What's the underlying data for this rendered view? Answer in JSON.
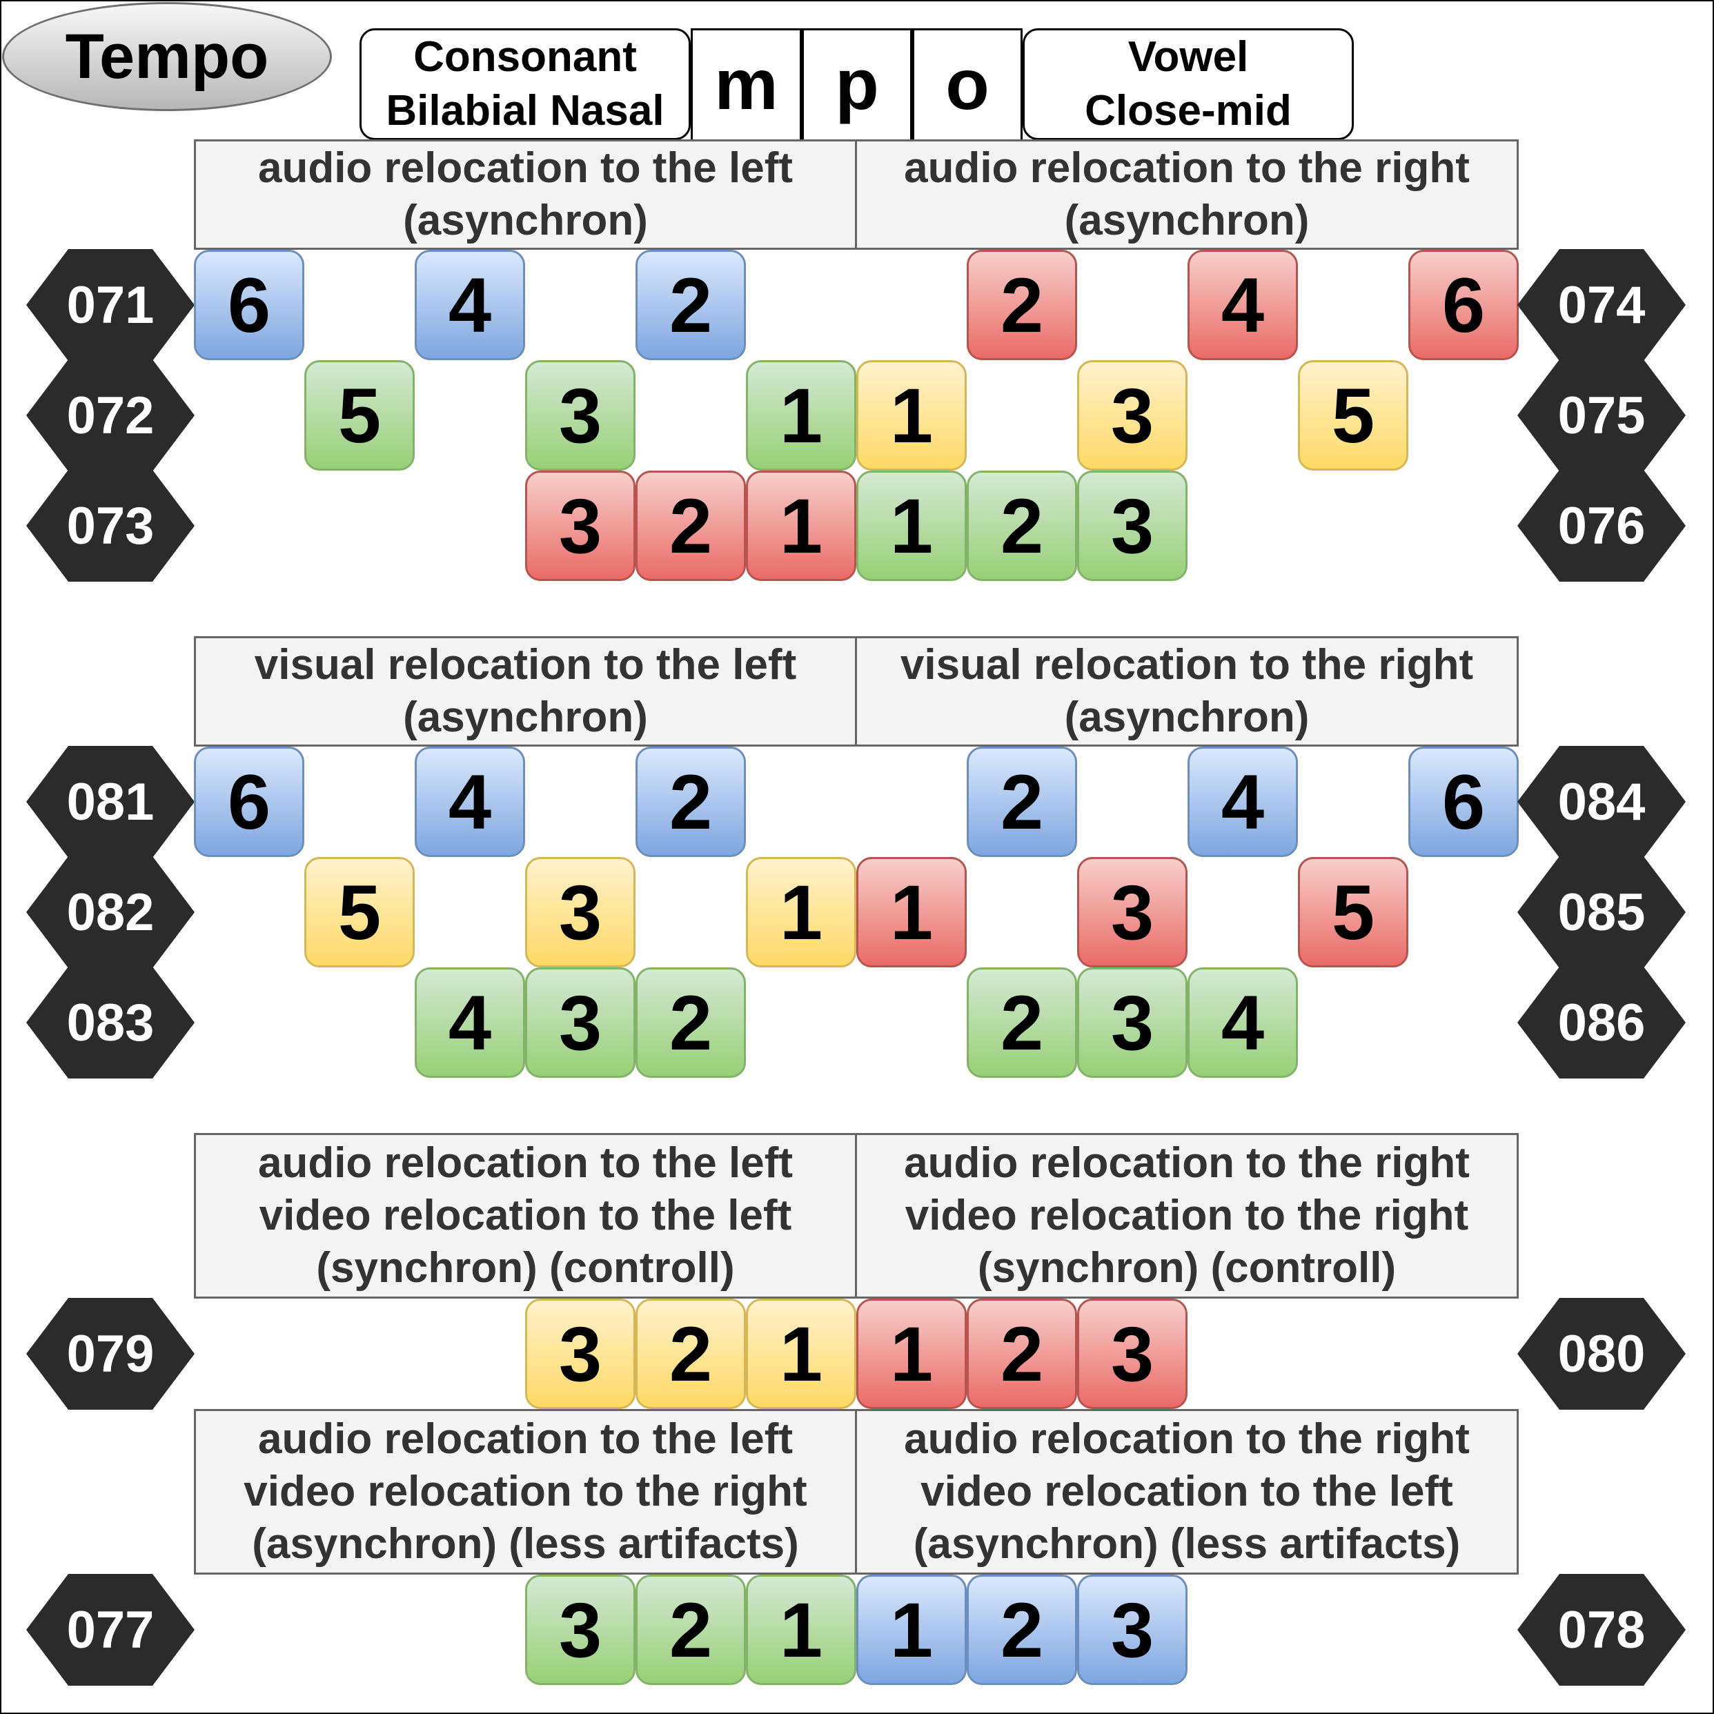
{
  "title": "Tempo",
  "consonant_label": "Consonant\nBilabial Nasal",
  "vowel_label": "Vowel\nClose-mid",
  "letters": [
    "m",
    "p",
    "o"
  ],
  "sections": [
    {
      "left": "audio relocation to the left\n(asynchron)",
      "right": "audio relocation to the right\n(asynchron)"
    },
    {
      "left": "visual relocation to the left\n(asynchron)",
      "right": "visual relocation to the right\n(asynchron)"
    },
    {
      "left": "audio relocation to the left\nvideo relocation to the left\n(synchron) (controll)",
      "right": "audio relocation to the right\nvideo relocation to the right\n(synchron)  (controll)"
    },
    {
      "left": "audio relocation to the left\nvideo relocation to the right\n(asynchron) (less artifacts)",
      "right": "audio relocation to the right\nvideo relocation to the left\n(asynchron) (less artifacts)"
    }
  ],
  "rows": [
    {
      "left_id": "071",
      "right_id": "074",
      "tiles": [
        {
          "n": "6",
          "color": "blue"
        },
        {
          "n": "4",
          "color": "blue"
        },
        {
          "n": "2",
          "color": "blue"
        },
        {
          "n": "2",
          "color": "red"
        },
        {
          "n": "4",
          "color": "red"
        },
        {
          "n": "6",
          "color": "red"
        }
      ]
    },
    {
      "left_id": "072",
      "right_id": "075",
      "tiles": [
        {
          "n": "5",
          "color": "green"
        },
        {
          "n": "3",
          "color": "green"
        },
        {
          "n": "1",
          "color": "green"
        },
        {
          "n": "1",
          "color": "yellow"
        },
        {
          "n": "3",
          "color": "yellow"
        },
        {
          "n": "5",
          "color": "yellow"
        }
      ]
    },
    {
      "left_id": "073",
      "right_id": "076",
      "tiles": [
        {
          "n": "3",
          "color": "red"
        },
        {
          "n": "2",
          "color": "red"
        },
        {
          "n": "1",
          "color": "red"
        },
        {
          "n": "1",
          "color": "green"
        },
        {
          "n": "2",
          "color": "green"
        },
        {
          "n": "3",
          "color": "green"
        }
      ]
    },
    {
      "left_id": "081",
      "right_id": "084",
      "tiles": [
        {
          "n": "6",
          "color": "blue"
        },
        {
          "n": "4",
          "color": "blue"
        },
        {
          "n": "2",
          "color": "blue"
        },
        {
          "n": "2",
          "color": "blue"
        },
        {
          "n": "4",
          "color": "blue"
        },
        {
          "n": "6",
          "color": "blue"
        }
      ]
    },
    {
      "left_id": "082",
      "right_id": "085",
      "tiles": [
        {
          "n": "5",
          "color": "yellow"
        },
        {
          "n": "3",
          "color": "yellow"
        },
        {
          "n": "1",
          "color": "yellow"
        },
        {
          "n": "1",
          "color": "red"
        },
        {
          "n": "3",
          "color": "red"
        },
        {
          "n": "5",
          "color": "red"
        }
      ]
    },
    {
      "left_id": "083",
      "right_id": "086",
      "tiles": [
        {
          "n": "4",
          "color": "green"
        },
        {
          "n": "3",
          "color": "green"
        },
        {
          "n": "2",
          "color": "green"
        },
        {
          "n": "2",
          "color": "green"
        },
        {
          "n": "3",
          "color": "green"
        },
        {
          "n": "4",
          "color": "green"
        }
      ]
    },
    {
      "left_id": "079",
      "right_id": "080",
      "tiles": [
        {
          "n": "3",
          "color": "yellow"
        },
        {
          "n": "2",
          "color": "yellow"
        },
        {
          "n": "1",
          "color": "yellow"
        },
        {
          "n": "1",
          "color": "red"
        },
        {
          "n": "2",
          "color": "red"
        },
        {
          "n": "3",
          "color": "red"
        }
      ]
    },
    {
      "left_id": "077",
      "right_id": "078",
      "tiles": [
        {
          "n": "3",
          "color": "green"
        },
        {
          "n": "2",
          "color": "green"
        },
        {
          "n": "1",
          "color": "green"
        },
        {
          "n": "1",
          "color": "blue"
        },
        {
          "n": "2",
          "color": "blue"
        },
        {
          "n": "3",
          "color": "blue"
        }
      ]
    }
  ]
}
